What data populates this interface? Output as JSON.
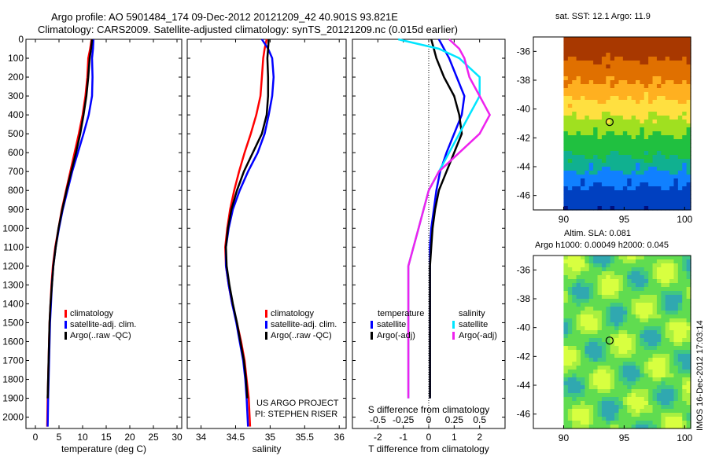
{
  "titles": {
    "line1": "Argo profile: AO 5901484_174 09-Dec-2012 20121209_42 40.901S 93.821E",
    "line2": "Climatology: CARS2009. Satellite-adjusted climatology: synTS_20121209.nc (0.015d earlier)"
  },
  "map_top_title": "sat. SST: 12.1 Argo: 11.9",
  "map_bottom_title1": "Altim. SLA: 0.081",
  "map_bottom_title2": "Argo h1000: 0.00049 h2000: 0.045",
  "project_line1": "US ARGO PROJECT",
  "project_line2": "PI: STEPHEN RISER",
  "timestamp": "IMOS 16-Dec-2012 17:03:14",
  "legend_profiles": [
    "climatology",
    "satellite-adj. clim.",
    "Argo(..raw -QC)"
  ],
  "legend_diff": {
    "temp_header": "temperature",
    "sal_header": "salinity",
    "temp_items": [
      "satellite",
      "Argo(-adj)"
    ],
    "sal_items": [
      "satellite",
      "Argo(-adj)"
    ]
  },
  "colors": {
    "climatology": "#ff0000",
    "satellite": "#0000ff",
    "argo": "#000000",
    "sal_satellite": "#00e5ff",
    "sal_argo": "#ee22ee"
  },
  "chart_data": [
    {
      "type": "line",
      "name": "temperature_profile",
      "xlabel": "temperature (deg C)",
      "ylabel": "",
      "xlim": [
        -2,
        31
      ],
      "ylim": [
        2060,
        0
      ],
      "xticks": [
        0,
        5,
        10,
        15,
        20,
        25,
        30
      ],
      "yticks": [
        0,
        100,
        200,
        300,
        400,
        500,
        600,
        700,
        800,
        900,
        1000,
        1100,
        1200,
        1300,
        1400,
        1500,
        1600,
        1700,
        1800,
        1900,
        2000
      ],
      "series": [
        {
          "name": "climatology",
          "x": [
            11.9,
            11.6,
            11.2,
            11.0,
            10.6,
            10.0,
            9.2,
            8.3,
            7.4,
            6.5,
            5.6,
            4.9,
            4.2,
            3.7,
            3.4,
            3.2,
            3.0,
            2.9,
            2.8,
            2.7,
            2.6,
            2.5
          ],
          "y": [
            0,
            50,
            100,
            200,
            300,
            400,
            500,
            600,
            700,
            800,
            900,
            1000,
            1100,
            1200,
            1300,
            1400,
            1500,
            1600,
            1700,
            1800,
            1900,
            2050
          ]
        },
        {
          "name": "satellite-adj. clim.",
          "x": [
            12.3,
            12.2,
            12.0,
            12.1,
            12.0,
            11.3,
            10.2,
            9.0,
            7.8,
            6.8,
            5.8,
            5.0,
            4.3,
            3.8,
            3.5,
            3.3,
            3.1,
            3.0,
            2.9,
            2.8,
            2.7,
            2.6
          ],
          "y": [
            0,
            50,
            100,
            200,
            300,
            400,
            500,
            600,
            700,
            800,
            900,
            1000,
            1100,
            1200,
            1300,
            1400,
            1500,
            1600,
            1700,
            1800,
            1900,
            2050
          ]
        },
        {
          "name": "Argo(..raw -QC)",
          "x": [
            12.0,
            11.8,
            11.5,
            11.2,
            10.8,
            10.2,
            9.5,
            8.6,
            7.6,
            6.6,
            5.7,
            4.9,
            4.3,
            3.8,
            3.5,
            3.2,
            3.0,
            2.9,
            2.8,
            2.7,
            2.6
          ],
          "y": [
            0,
            50,
            100,
            200,
            300,
            400,
            500,
            600,
            700,
            800,
            900,
            1000,
            1100,
            1200,
            1300,
            1400,
            1500,
            1600,
            1700,
            1800,
            1900
          ]
        }
      ]
    },
    {
      "type": "line",
      "name": "salinity_profile",
      "xlabel": "salinity",
      "ylabel": "",
      "xlim": [
        33.8,
        36.1
      ],
      "ylim": [
        2060,
        0
      ],
      "xticks": [
        34,
        34.5,
        35,
        35.5,
        36
      ],
      "xtick_labels": [
        "34",
        "34.5",
        "35",
        "35.5",
        "36"
      ],
      "series": [
        {
          "name": "climatology",
          "x": [
            34.95,
            34.92,
            34.9,
            34.88,
            34.86,
            34.8,
            34.72,
            34.63,
            34.55,
            34.48,
            34.42,
            34.38,
            34.35,
            34.36,
            34.4,
            34.45,
            34.52,
            34.58,
            34.63,
            34.66,
            34.69,
            34.71
          ],
          "y": [
            0,
            50,
            100,
            200,
            300,
            400,
            500,
            600,
            700,
            800,
            900,
            1000,
            1100,
            1200,
            1300,
            1400,
            1500,
            1600,
            1700,
            1800,
            1900,
            2050
          ]
        },
        {
          "name": "satellite-adj. clim.",
          "x": [
            34.88,
            34.97,
            35.03,
            35.05,
            35.03,
            34.98,
            34.92,
            34.82,
            34.68,
            34.56,
            34.46,
            34.4,
            34.36,
            34.36,
            34.4,
            34.45,
            34.51,
            34.56,
            34.61,
            34.64,
            34.66,
            34.68
          ],
          "y": [
            0,
            50,
            100,
            200,
            300,
            400,
            500,
            600,
            700,
            800,
            900,
            1000,
            1100,
            1200,
            1300,
            1400,
            1500,
            1600,
            1700,
            1800,
            1900,
            2050
          ]
        },
        {
          "name": "Argo(..raw -QC)",
          "x": [
            34.98,
            34.97,
            34.96,
            34.97,
            34.97,
            34.95,
            34.88,
            34.75,
            34.62,
            34.52,
            34.44,
            34.39,
            34.36,
            34.37,
            34.41,
            34.46,
            34.52,
            34.57,
            34.62,
            34.65,
            34.67
          ],
          "y": [
            0,
            50,
            100,
            200,
            300,
            400,
            500,
            600,
            700,
            800,
            900,
            1000,
            1100,
            1200,
            1300,
            1400,
            1500,
            1600,
            1700,
            1800,
            1900
          ]
        }
      ]
    },
    {
      "type": "line",
      "name": "difference_profile",
      "xlabel": "T difference from climatology",
      "xlabel_top": "S difference from climatology",
      "xlim": [
        -3,
        3
      ],
      "ylim": [
        2060,
        0
      ],
      "xticks": [
        -2,
        -1,
        0,
        1,
        2
      ],
      "xticks_s": [
        -0.5,
        -0.25,
        0,
        0.25,
        0.5
      ],
      "xtick_labels_s": [
        "-0.5",
        "-0.25",
        "0",
        "0.25",
        "0.5"
      ],
      "series": [
        {
          "name": "temperature satellite",
          "x": [
            0.4,
            0.6,
            0.8,
            1.1,
            1.4,
            1.3,
            1.0,
            0.7,
            0.45,
            0.3,
            0.2,
            0.1,
            0.05,
            0.05,
            0.05,
            0.05,
            0.05,
            0.05,
            0.05,
            0.05,
            0.05
          ],
          "y": [
            0,
            50,
            100,
            200,
            300,
            400,
            500,
            600,
            700,
            800,
            900,
            1000,
            1100,
            1200,
            1300,
            1400,
            1500,
            1600,
            1700,
            1800,
            1900
          ]
        },
        {
          "name": "temperature Argo(-adj)",
          "x": [
            0.1,
            0.2,
            0.3,
            0.6,
            1.0,
            1.2,
            1.3,
            1.0,
            0.7,
            0.4,
            0.25,
            0.15,
            0.1,
            0.05,
            0.05,
            0.05,
            0.05,
            0.05,
            0.05,
            0.05,
            0.05
          ],
          "y": [
            0,
            50,
            100,
            200,
            300,
            400,
            500,
            600,
            700,
            800,
            900,
            1000,
            1100,
            1200,
            1300,
            1400,
            1500,
            1600,
            1700,
            1800,
            1900
          ]
        },
        {
          "name": "salinity satellite",
          "x": [
            -0.3,
            0.1,
            0.3,
            0.5,
            0.5,
            0.4,
            0.3,
            0.2,
            0.1,
            0.0,
            -0.05,
            -0.1,
            -0.15,
            -0.2,
            -0.2,
            -0.2,
            -0.2,
            -0.2,
            -0.2,
            -0.2,
            -0.2
          ],
          "y": [
            0,
            50,
            100,
            200,
            300,
            400,
            500,
            600,
            700,
            800,
            900,
            1000,
            1100,
            1200,
            1300,
            1400,
            1500,
            1600,
            1700,
            1800,
            1900
          ]
        },
        {
          "name": "salinity Argo(-adj)",
          "x": [
            0.2,
            0.3,
            0.35,
            0.4,
            0.5,
            0.6,
            0.5,
            0.3,
            0.1,
            0.0,
            -0.05,
            -0.1,
            -0.15,
            -0.2,
            -0.2,
            -0.2,
            -0.2,
            -0.2,
            -0.2,
            -0.2,
            -0.2
          ],
          "y": [
            0,
            50,
            100,
            200,
            300,
            400,
            500,
            600,
            700,
            800,
            900,
            1000,
            1100,
            1200,
            1300,
            1400,
            1500,
            1600,
            1700,
            1800,
            1900
          ]
        }
      ]
    },
    {
      "type": "heatmap",
      "name": "sst_map",
      "title": "sat. SST: 12.1 Argo: 11.9",
      "xlim": [
        87.5,
        100.5
      ],
      "ylim": [
        -47,
        -35
      ],
      "xticks": [
        90,
        95,
        100
      ],
      "yticks": [
        -36,
        -38,
        -40,
        -42,
        -44,
        -46
      ],
      "marker": {
        "x": 93.8,
        "y": -40.9
      }
    },
    {
      "type": "heatmap",
      "name": "sla_map",
      "title": "Altim. SLA: 0.081",
      "subtitle": "Argo h1000: 0.00049 h2000: 0.045",
      "xlim": [
        87.5,
        100.5
      ],
      "ylim": [
        -47,
        -35
      ],
      "xticks": [
        90,
        95,
        100
      ],
      "yticks": [
        -36,
        -38,
        -40,
        -42,
        -44,
        -46
      ],
      "marker": {
        "x": 93.8,
        "y": -40.9
      }
    }
  ]
}
